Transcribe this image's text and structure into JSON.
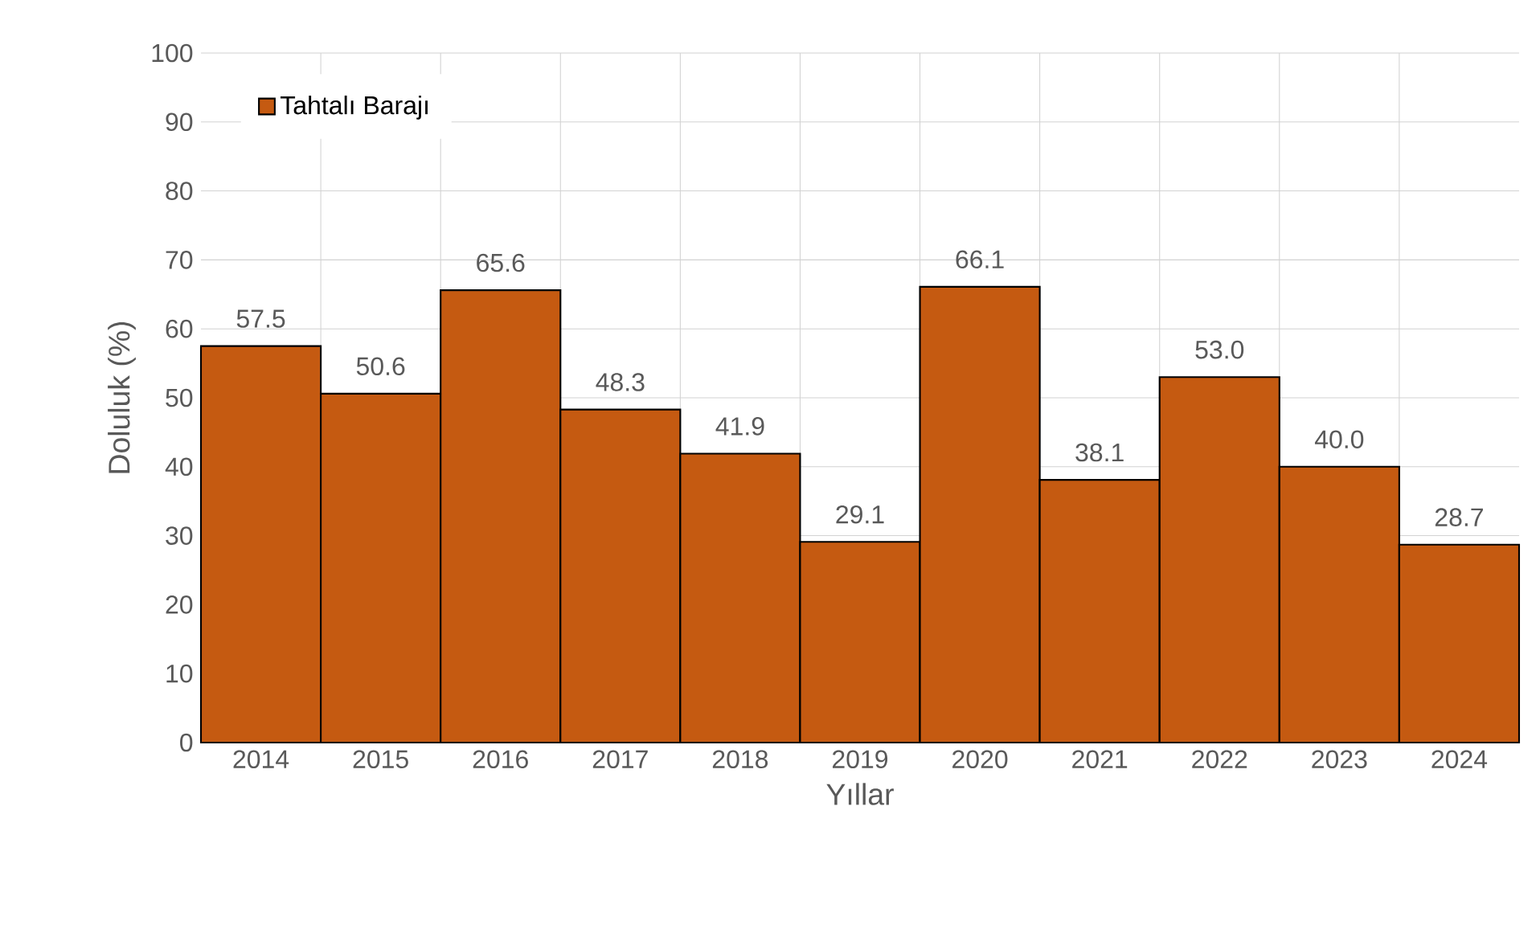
{
  "chart_data": {
    "type": "bar",
    "xlabel": "Yıllar",
    "ylabel": "Doluluk (%)",
    "categories": [
      "2014",
      "2015",
      "2016",
      "2017",
      "2018",
      "2019",
      "2020",
      "2021",
      "2022",
      "2023",
      "2024"
    ],
    "series": [
      {
        "name": "Tahtalı Barajı",
        "color": "#c55a11",
        "values": [
          57.5,
          50.6,
          65.6,
          48.3,
          41.9,
          29.1,
          66.1,
          38.1,
          53.0,
          40.0,
          28.7
        ],
        "value_labels": [
          "57.5",
          "50.6",
          "65.6",
          "48.3",
          "41.9",
          "29.1",
          "66.1",
          "38.1",
          "53.0",
          "40.0",
          "28.7"
        ]
      }
    ],
    "ylim": [
      0,
      100
    ],
    "yticks": [
      0,
      10,
      20,
      30,
      40,
      50,
      60,
      70,
      80,
      90,
      100
    ],
    "grid": true,
    "legend": "top left"
  }
}
